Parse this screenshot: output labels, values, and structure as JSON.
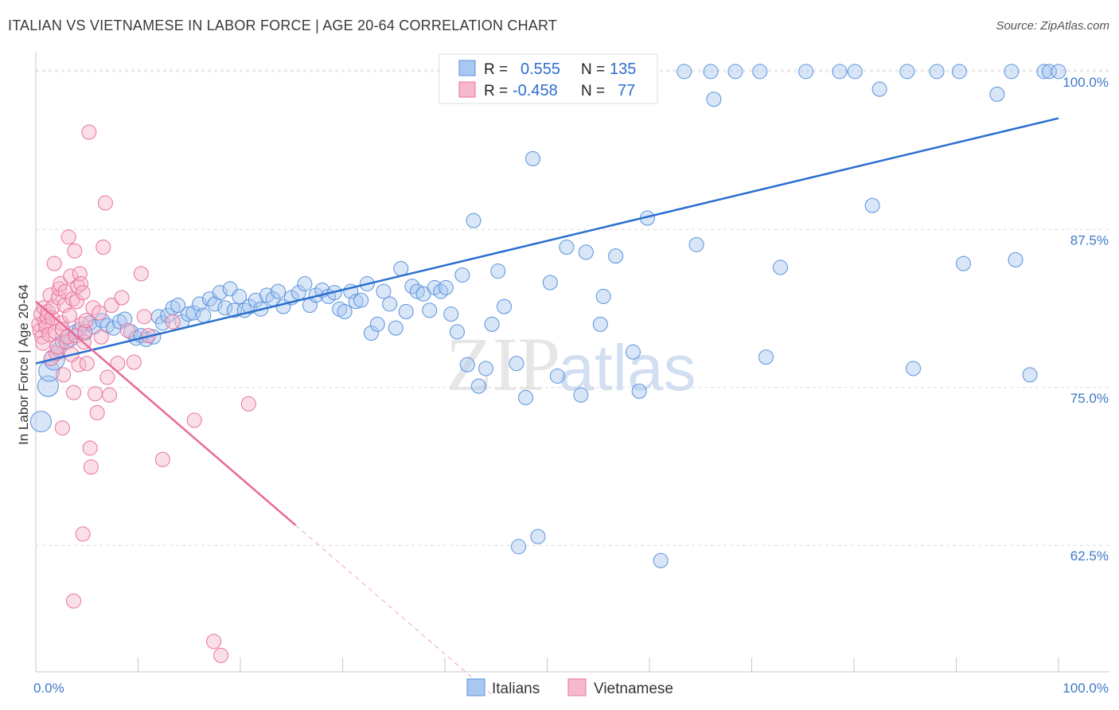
{
  "title": "ITALIAN VS VIETNAMESE IN LABOR FORCE | AGE 20-64 CORRELATION CHART",
  "source": "Source: ZipAtlas.com",
  "watermark": {
    "zip": "ZIP",
    "atlas": "atlas"
  },
  "colors": {
    "blue_fill": "#a9c8f0",
    "blue_stroke": "#5a92dc",
    "blue_line": "#2a6fcf",
    "pink_fill": "#f6b8cc",
    "pink_stroke": "#e8739a",
    "pink_line": "#e8689a",
    "tick_text": "#3f79c8",
    "grid": "#dcdcdc"
  },
  "legend": {
    "rows": [
      {
        "r_label": "R =",
        "r_value": "0.555",
        "n_label": "N =",
        "n_value": "135"
      },
      {
        "r_label": "R =",
        "r_value": "-0.458",
        "n_label": "N =",
        "n_value": "77"
      }
    ]
  },
  "chart_data": {
    "type": "scatter",
    "title": "ITALIAN VS VIETNAMESE IN LABOR FORCE | AGE 20-64 CORRELATION CHART",
    "xlabel": "",
    "ylabel": "In Labor Force | Age 20-64",
    "xlim": [
      0,
      100
    ],
    "ylim": [
      52.5,
      101.5
    ],
    "x_tick_labels": [
      "0.0%",
      "100.0%"
    ],
    "y_ticks": [
      62.5,
      75.0,
      87.5,
      100.0
    ],
    "y_tick_labels": [
      "62.5%",
      "75.0%",
      "87.5%",
      "100.0%"
    ],
    "grid": "horizontal dashed",
    "legend_position": "top-center",
    "series": [
      {
        "name": "Italians",
        "r": 0.555,
        "n": 135,
        "trend": {
          "x": [
            0,
            100
          ],
          "y": [
            76.9,
            96.3
          ]
        },
        "points": [
          [
            0.5,
            72.3
          ],
          [
            1.2,
            75.1
          ],
          [
            1.3,
            76.3
          ],
          [
            1.8,
            77.2
          ],
          [
            2.2,
            78.0
          ],
          [
            2.6,
            78.6
          ],
          [
            3.1,
            79.0
          ],
          [
            3.4,
            78.8
          ],
          [
            3.9,
            79.4
          ],
          [
            4.3,
            79.6
          ],
          [
            4.8,
            79.3
          ],
          [
            5.3,
            80.1
          ],
          [
            5.7,
            79.8
          ],
          [
            6.5,
            80.3
          ],
          [
            7.0,
            79.9
          ],
          [
            7.6,
            79.7
          ],
          [
            8.2,
            80.2
          ],
          [
            8.7,
            80.4
          ],
          [
            9.3,
            79.4
          ],
          [
            9.8,
            78.9
          ],
          [
            10.3,
            79.1
          ],
          [
            10.8,
            78.8
          ],
          [
            11.5,
            79.0
          ],
          [
            12.0,
            80.6
          ],
          [
            12.4,
            80.1
          ],
          [
            12.9,
            80.7
          ],
          [
            13.4,
            81.3
          ],
          [
            13.9,
            81.5
          ],
          [
            14.3,
            80.2
          ],
          [
            14.9,
            80.8
          ],
          [
            15.4,
            80.9
          ],
          [
            16.0,
            81.6
          ],
          [
            16.4,
            80.7
          ],
          [
            17.0,
            82.0
          ],
          [
            17.5,
            81.6
          ],
          [
            18.0,
            82.5
          ],
          [
            18.5,
            81.3
          ],
          [
            19.0,
            82.8
          ],
          [
            19.4,
            81.1
          ],
          [
            19.9,
            82.2
          ],
          [
            20.4,
            81.1
          ],
          [
            20.9,
            81.4
          ],
          [
            21.5,
            81.9
          ],
          [
            22.0,
            81.2
          ],
          [
            22.6,
            82.3
          ],
          [
            23.2,
            82.0
          ],
          [
            23.7,
            82.6
          ],
          [
            24.2,
            81.4
          ],
          [
            25.0,
            82.1
          ],
          [
            25.7,
            82.5
          ],
          [
            26.3,
            83.2
          ],
          [
            26.8,
            81.5
          ],
          [
            27.4,
            82.3
          ],
          [
            28.0,
            82.7
          ],
          [
            28.6,
            82.2
          ],
          [
            29.2,
            82.5
          ],
          [
            29.7,
            81.2
          ],
          [
            30.2,
            81.0
          ],
          [
            30.8,
            82.6
          ],
          [
            31.3,
            81.8
          ],
          [
            31.8,
            81.9
          ],
          [
            32.4,
            83.2
          ],
          [
            32.8,
            79.3
          ],
          [
            33.4,
            80.0
          ],
          [
            34.0,
            82.6
          ],
          [
            34.6,
            81.6
          ],
          [
            35.2,
            79.7
          ],
          [
            35.7,
            84.4
          ],
          [
            36.2,
            81.0
          ],
          [
            36.8,
            83.0
          ],
          [
            37.3,
            82.6
          ],
          [
            37.9,
            82.4
          ],
          [
            38.5,
            81.1
          ],
          [
            39.0,
            82.9
          ],
          [
            39.6,
            82.6
          ],
          [
            40.1,
            82.9
          ],
          [
            40.6,
            80.8
          ],
          [
            41.2,
            79.4
          ],
          [
            41.7,
            83.9
          ],
          [
            42.2,
            76.8
          ],
          [
            42.8,
            88.2
          ],
          [
            43.3,
            75.1
          ],
          [
            44.0,
            76.5
          ],
          [
            44.6,
            80.0
          ],
          [
            45.2,
            84.2
          ],
          [
            45.8,
            81.4
          ],
          [
            47.0,
            76.9
          ],
          [
            47.2,
            62.4
          ],
          [
            47.9,
            74.2
          ],
          [
            48.6,
            93.1
          ],
          [
            49.1,
            63.2
          ],
          [
            50.3,
            83.3
          ],
          [
            51.0,
            75.9
          ],
          [
            51.9,
            86.1
          ],
          [
            53.3,
            74.4
          ],
          [
            53.8,
            85.7
          ],
          [
            55.2,
            80.0
          ],
          [
            55.5,
            82.2
          ],
          [
            56.7,
            85.4
          ],
          [
            58.4,
            77.8
          ],
          [
            59.0,
            74.7
          ],
          [
            59.8,
            88.4
          ],
          [
            61.1,
            61.3
          ],
          [
            63.4,
            100.0
          ],
          [
            64.6,
            86.3
          ],
          [
            66.0,
            100.0
          ],
          [
            66.3,
            97.8
          ],
          [
            68.4,
            100.0
          ],
          [
            70.8,
            100.0
          ],
          [
            71.4,
            77.4
          ],
          [
            72.8,
            84.5
          ],
          [
            75.3,
            100.0
          ],
          [
            78.6,
            100.0
          ],
          [
            80.1,
            100.0
          ],
          [
            81.8,
            89.4
          ],
          [
            82.5,
            98.6
          ],
          [
            85.2,
            100.0
          ],
          [
            85.8,
            76.5
          ],
          [
            88.1,
            100.0
          ],
          [
            90.3,
            100.0
          ],
          [
            90.7,
            84.8
          ],
          [
            94.0,
            98.2
          ],
          [
            95.4,
            100.0
          ],
          [
            95.8,
            85.1
          ],
          [
            97.2,
            76.0
          ],
          [
            98.6,
            100.0
          ],
          [
            99.1,
            100.0
          ],
          [
            100.0,
            100.0
          ]
        ]
      },
      {
        "name": "Vietnamese",
        "r": -0.458,
        "n": 77,
        "trend": {
          "x": [
            0,
            25.4
          ],
          "y": [
            81.8,
            64.1
          ]
        },
        "trend_dashed_extension": {
          "x": [
            25.4,
            44.6
          ],
          "y": [
            64.1,
            50.7
          ]
        },
        "points": [
          [
            0.3,
            80.0
          ],
          [
            0.4,
            79.5
          ],
          [
            0.5,
            80.8
          ],
          [
            0.6,
            79.0
          ],
          [
            0.7,
            78.5
          ],
          [
            0.8,
            81.3
          ],
          [
            0.9,
            80.2
          ],
          [
            1.0,
            79.8
          ],
          [
            1.1,
            80.6
          ],
          [
            1.2,
            81.0
          ],
          [
            1.3,
            79.2
          ],
          [
            1.4,
            82.3
          ],
          [
            1.5,
            77.3
          ],
          [
            1.6,
            80.5
          ],
          [
            1.7,
            81.4
          ],
          [
            1.8,
            84.8
          ],
          [
            1.9,
            79.4
          ],
          [
            2.0,
            77.7
          ],
          [
            2.1,
            78.2
          ],
          [
            2.2,
            82.1
          ],
          [
            2.3,
            82.8
          ],
          [
            2.4,
            83.2
          ],
          [
            2.5,
            80.1
          ],
          [
            2.6,
            79.6
          ],
          [
            2.7,
            76.0
          ],
          [
            2.8,
            81.5
          ],
          [
            2.9,
            82.6
          ],
          [
            3.0,
            78.6
          ],
          [
            3.1,
            79.0
          ],
          [
            3.2,
            86.9
          ],
          [
            3.3,
            80.7
          ],
          [
            3.4,
            83.8
          ],
          [
            3.5,
            77.6
          ],
          [
            3.6,
            82.0
          ],
          [
            3.7,
            74.6
          ],
          [
            3.8,
            85.8
          ],
          [
            3.9,
            79.1
          ],
          [
            4.0,
            81.8
          ],
          [
            4.1,
            83.0
          ],
          [
            4.2,
            76.8
          ],
          [
            4.3,
            84.0
          ],
          [
            4.4,
            83.2
          ],
          [
            4.5,
            80.0
          ],
          [
            4.6,
            82.5
          ],
          [
            4.7,
            78.6
          ],
          [
            4.8,
            79.4
          ],
          [
            4.9,
            80.3
          ],
          [
            5.0,
            76.9
          ],
          [
            5.2,
            95.2
          ],
          [
            5.3,
            70.2
          ],
          [
            5.4,
            68.7
          ],
          [
            5.6,
            81.3
          ],
          [
            5.8,
            74.5
          ],
          [
            6.0,
            73.0
          ],
          [
            6.2,
            80.9
          ],
          [
            6.4,
            79.0
          ],
          [
            6.6,
            86.1
          ],
          [
            6.8,
            89.6
          ],
          [
            7.0,
            75.8
          ],
          [
            7.2,
            74.4
          ],
          [
            7.4,
            81.5
          ],
          [
            8.0,
            76.9
          ],
          [
            8.4,
            82.1
          ],
          [
            9.0,
            79.5
          ],
          [
            9.6,
            77.0
          ],
          [
            10.3,
            84.0
          ],
          [
            10.6,
            80.6
          ],
          [
            11.0,
            79.1
          ],
          [
            12.4,
            69.3
          ],
          [
            13.4,
            80.2
          ],
          [
            15.5,
            72.4
          ],
          [
            17.4,
            54.9
          ],
          [
            18.1,
            53.8
          ],
          [
            20.8,
            73.7
          ],
          [
            3.7,
            58.1
          ],
          [
            4.6,
            63.4
          ],
          [
            2.6,
            71.8
          ]
        ]
      }
    ]
  }
}
